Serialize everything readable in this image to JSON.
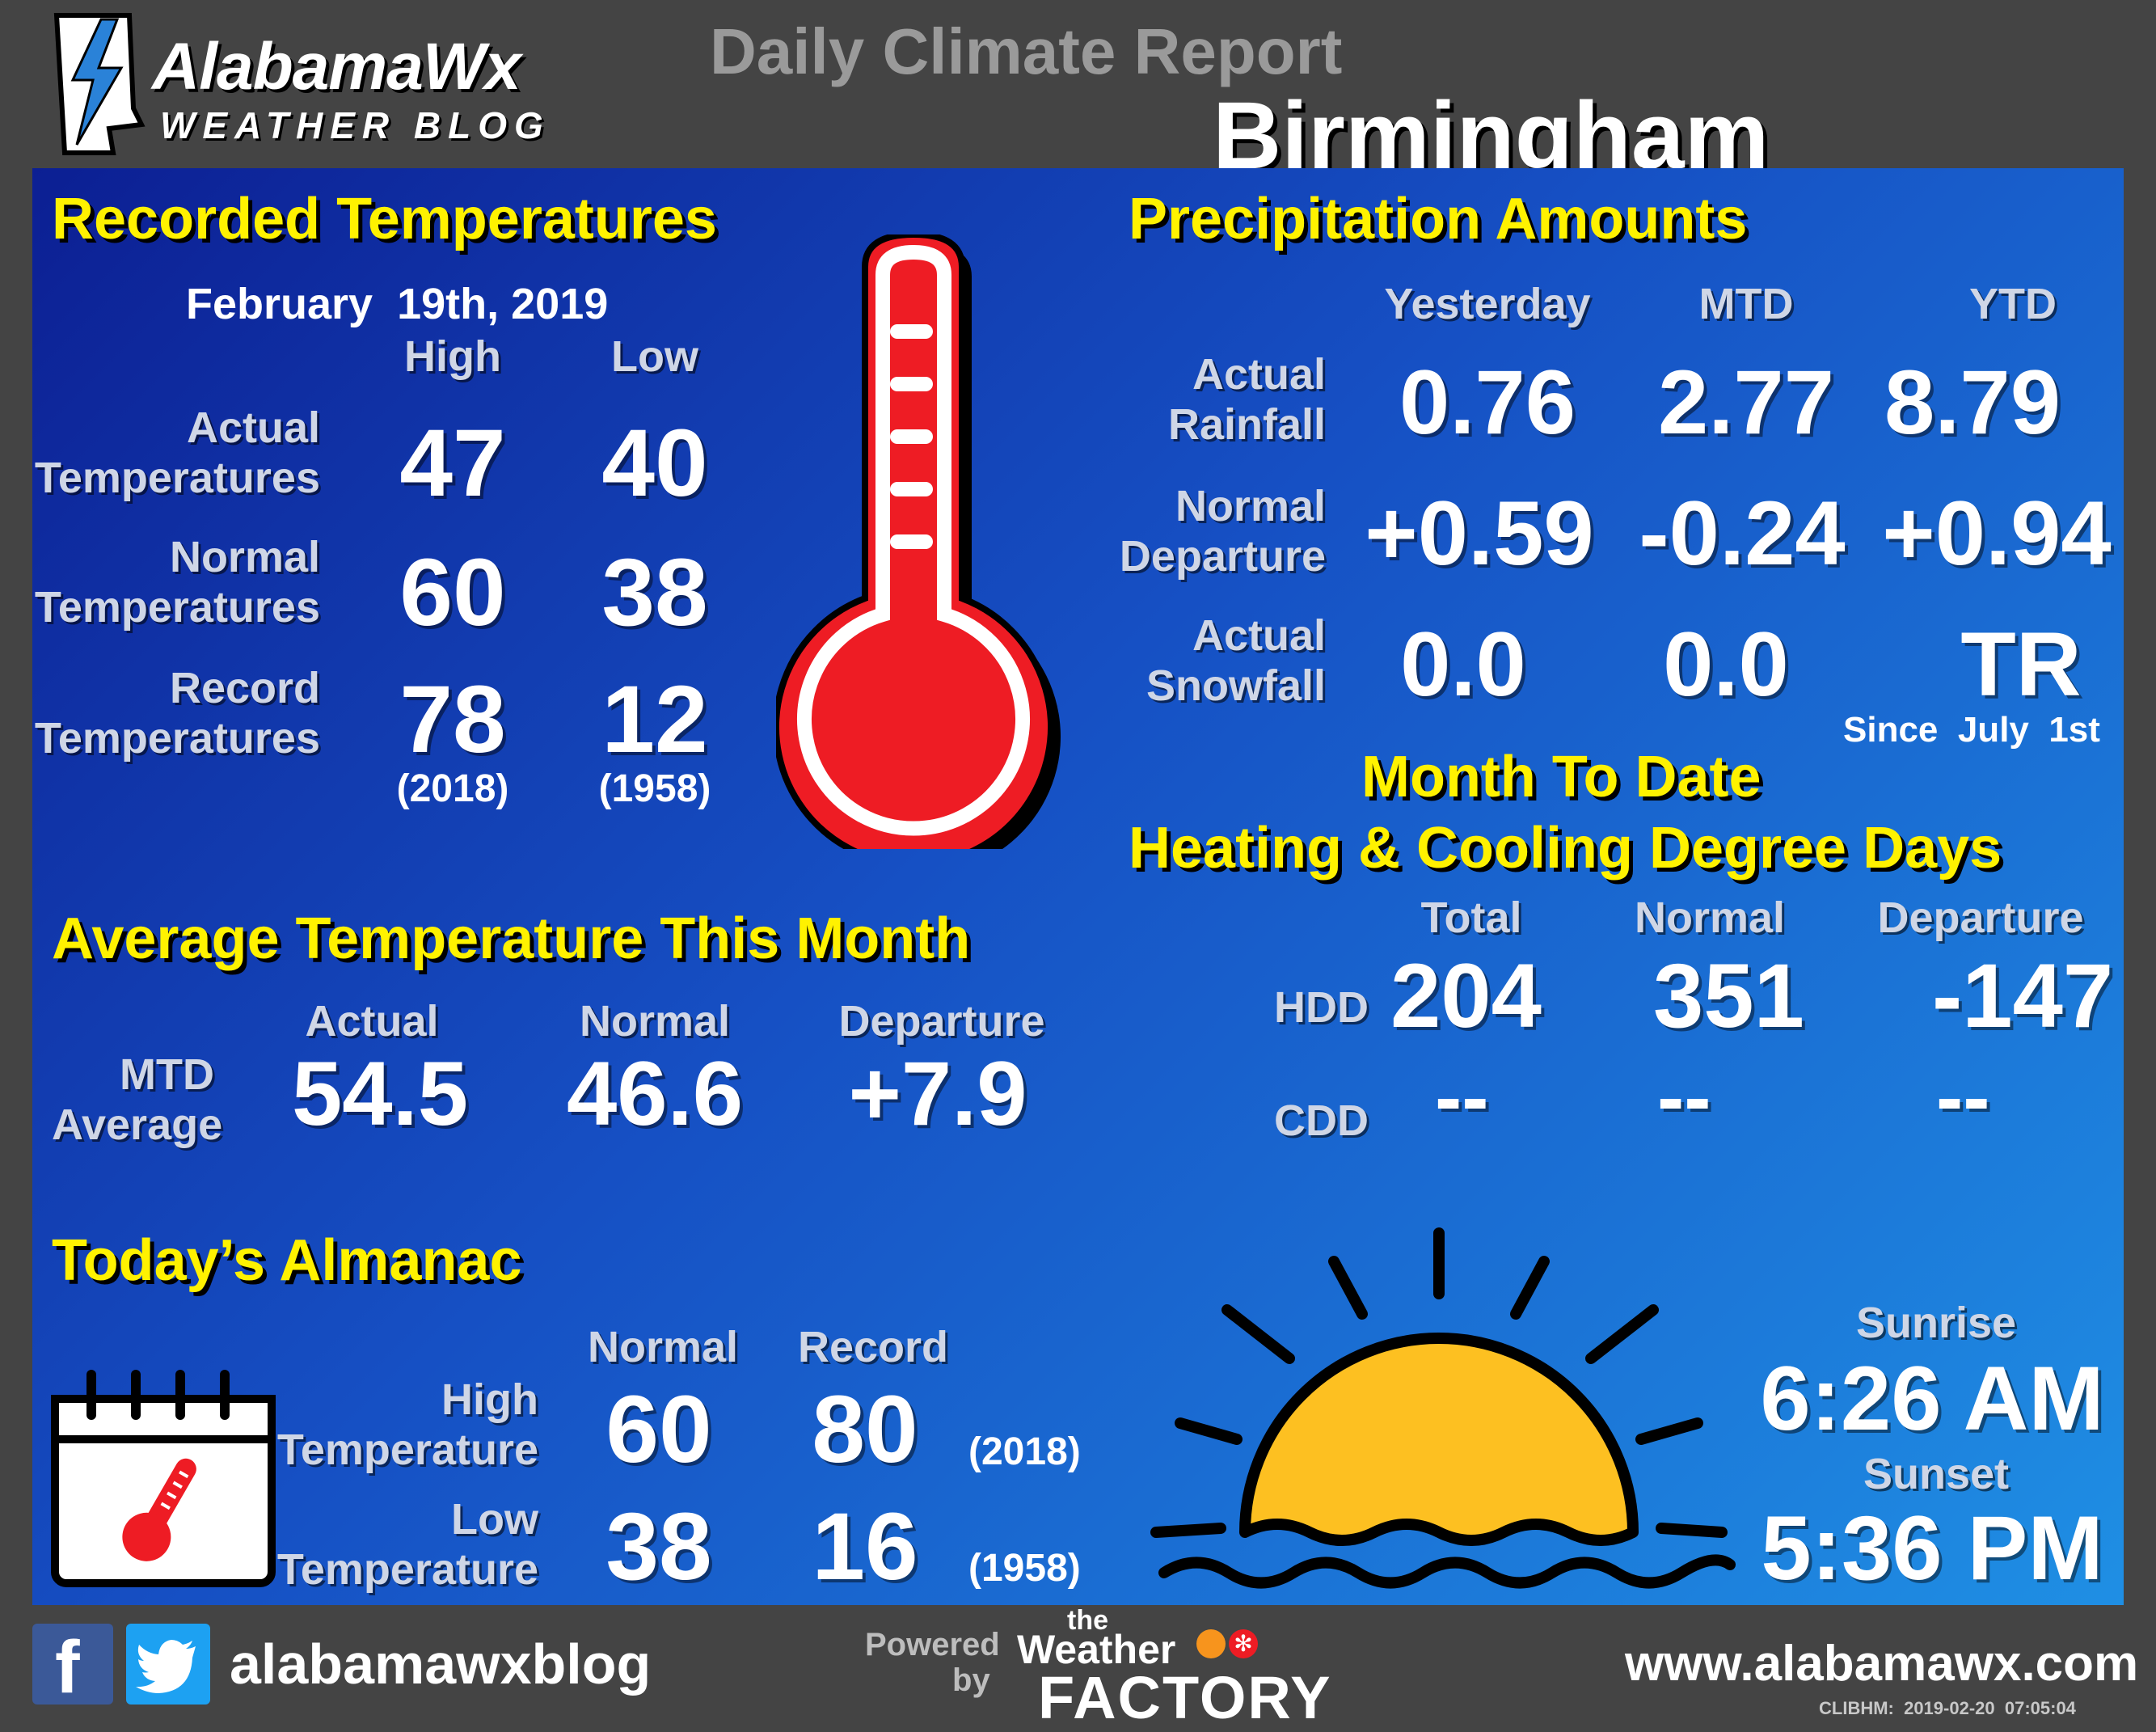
{
  "brand": {
    "logo_name": "AlabamaWx",
    "logo_sub": "WEATHER BLOG"
  },
  "header": {
    "title": "Daily Climate Report",
    "city": "Birmingham"
  },
  "recorded_temperatures": {
    "title": "Recorded Temperatures",
    "date": "February  19th, 2019",
    "col_high": "High",
    "col_low": "Low",
    "rows": [
      {
        "label1": "Actual",
        "label2": "Temperatures",
        "high": "47",
        "low": "40"
      },
      {
        "label1": "Normal",
        "label2": "Temperatures",
        "high": "60",
        "low": "38"
      },
      {
        "label1": "Record",
        "label2": "Temperatures",
        "high": "78",
        "low": "12"
      }
    ],
    "record_high_year": "(2018)",
    "record_low_year": "(1958)"
  },
  "precipitation": {
    "title": "Precipitation Amounts",
    "columns": [
      "Yesterday",
      "MTD",
      "YTD"
    ],
    "rows": [
      {
        "label1": "Actual",
        "label2": "Rainfall",
        "values": [
          "0.76",
          "2.77",
          "8.79"
        ]
      },
      {
        "label1": "Normal",
        "label2": "Departure",
        "values": [
          "+0.59",
          "-0.24",
          "+0.94"
        ]
      },
      {
        "label1": "Actual",
        "label2": "Snowfall",
        "values": [
          "0.0",
          "0.0",
          "TR"
        ]
      }
    ],
    "snow_note": "Since  July  1st"
  },
  "degree_days": {
    "title1": "Month To Date",
    "title2": "Heating & Cooling Degree Days",
    "columns": [
      "Total",
      "Normal",
      "Departure"
    ],
    "rows": [
      {
        "label": "HDD",
        "values": [
          "204",
          "351",
          "-147"
        ]
      },
      {
        "label": "CDD",
        "values": [
          "--",
          "--",
          "--"
        ]
      }
    ]
  },
  "average_temp": {
    "title": "Average Temperature This Month",
    "columns": [
      "Actual",
      "Normal",
      "Departure"
    ],
    "label1": "MTD",
    "label2": "Average",
    "values": [
      "54.5",
      "46.6",
      "+7.9"
    ]
  },
  "almanac": {
    "title": "Today’s Almanac",
    "columns": [
      "Normal",
      "Record"
    ],
    "rows": [
      {
        "label1": "High",
        "label2": "Temperature",
        "normal": "60",
        "record": "80",
        "year": "(2018)"
      },
      {
        "label1": "Low",
        "label2": "Temperature",
        "normal": "38",
        "record": "16",
        "year": "(1958)"
      }
    ]
  },
  "sun": {
    "sunrise_label": "Sunrise",
    "sunrise": "6:26 AM",
    "sunset_label": "Sunset",
    "sunset": "5:36 PM"
  },
  "footer": {
    "social_handle": "alabamawxblog",
    "powered_by_1": "Powered",
    "powered_by_2": "by",
    "factory_the": "the",
    "factory_weather": "Weather",
    "factory_name": "FACTORY",
    "website": "www.alabamawx.com",
    "stamp": "CLIBHM:  2019-02-20  07:05:04"
  },
  "colors": {
    "accent_yellow": "#fff200",
    "thermometer_red": "#ee1c24",
    "sun_yellow": "#fdc021",
    "panel_blue_dark": "#0c1f93",
    "panel_blue_light": "#1f8fe4"
  }
}
